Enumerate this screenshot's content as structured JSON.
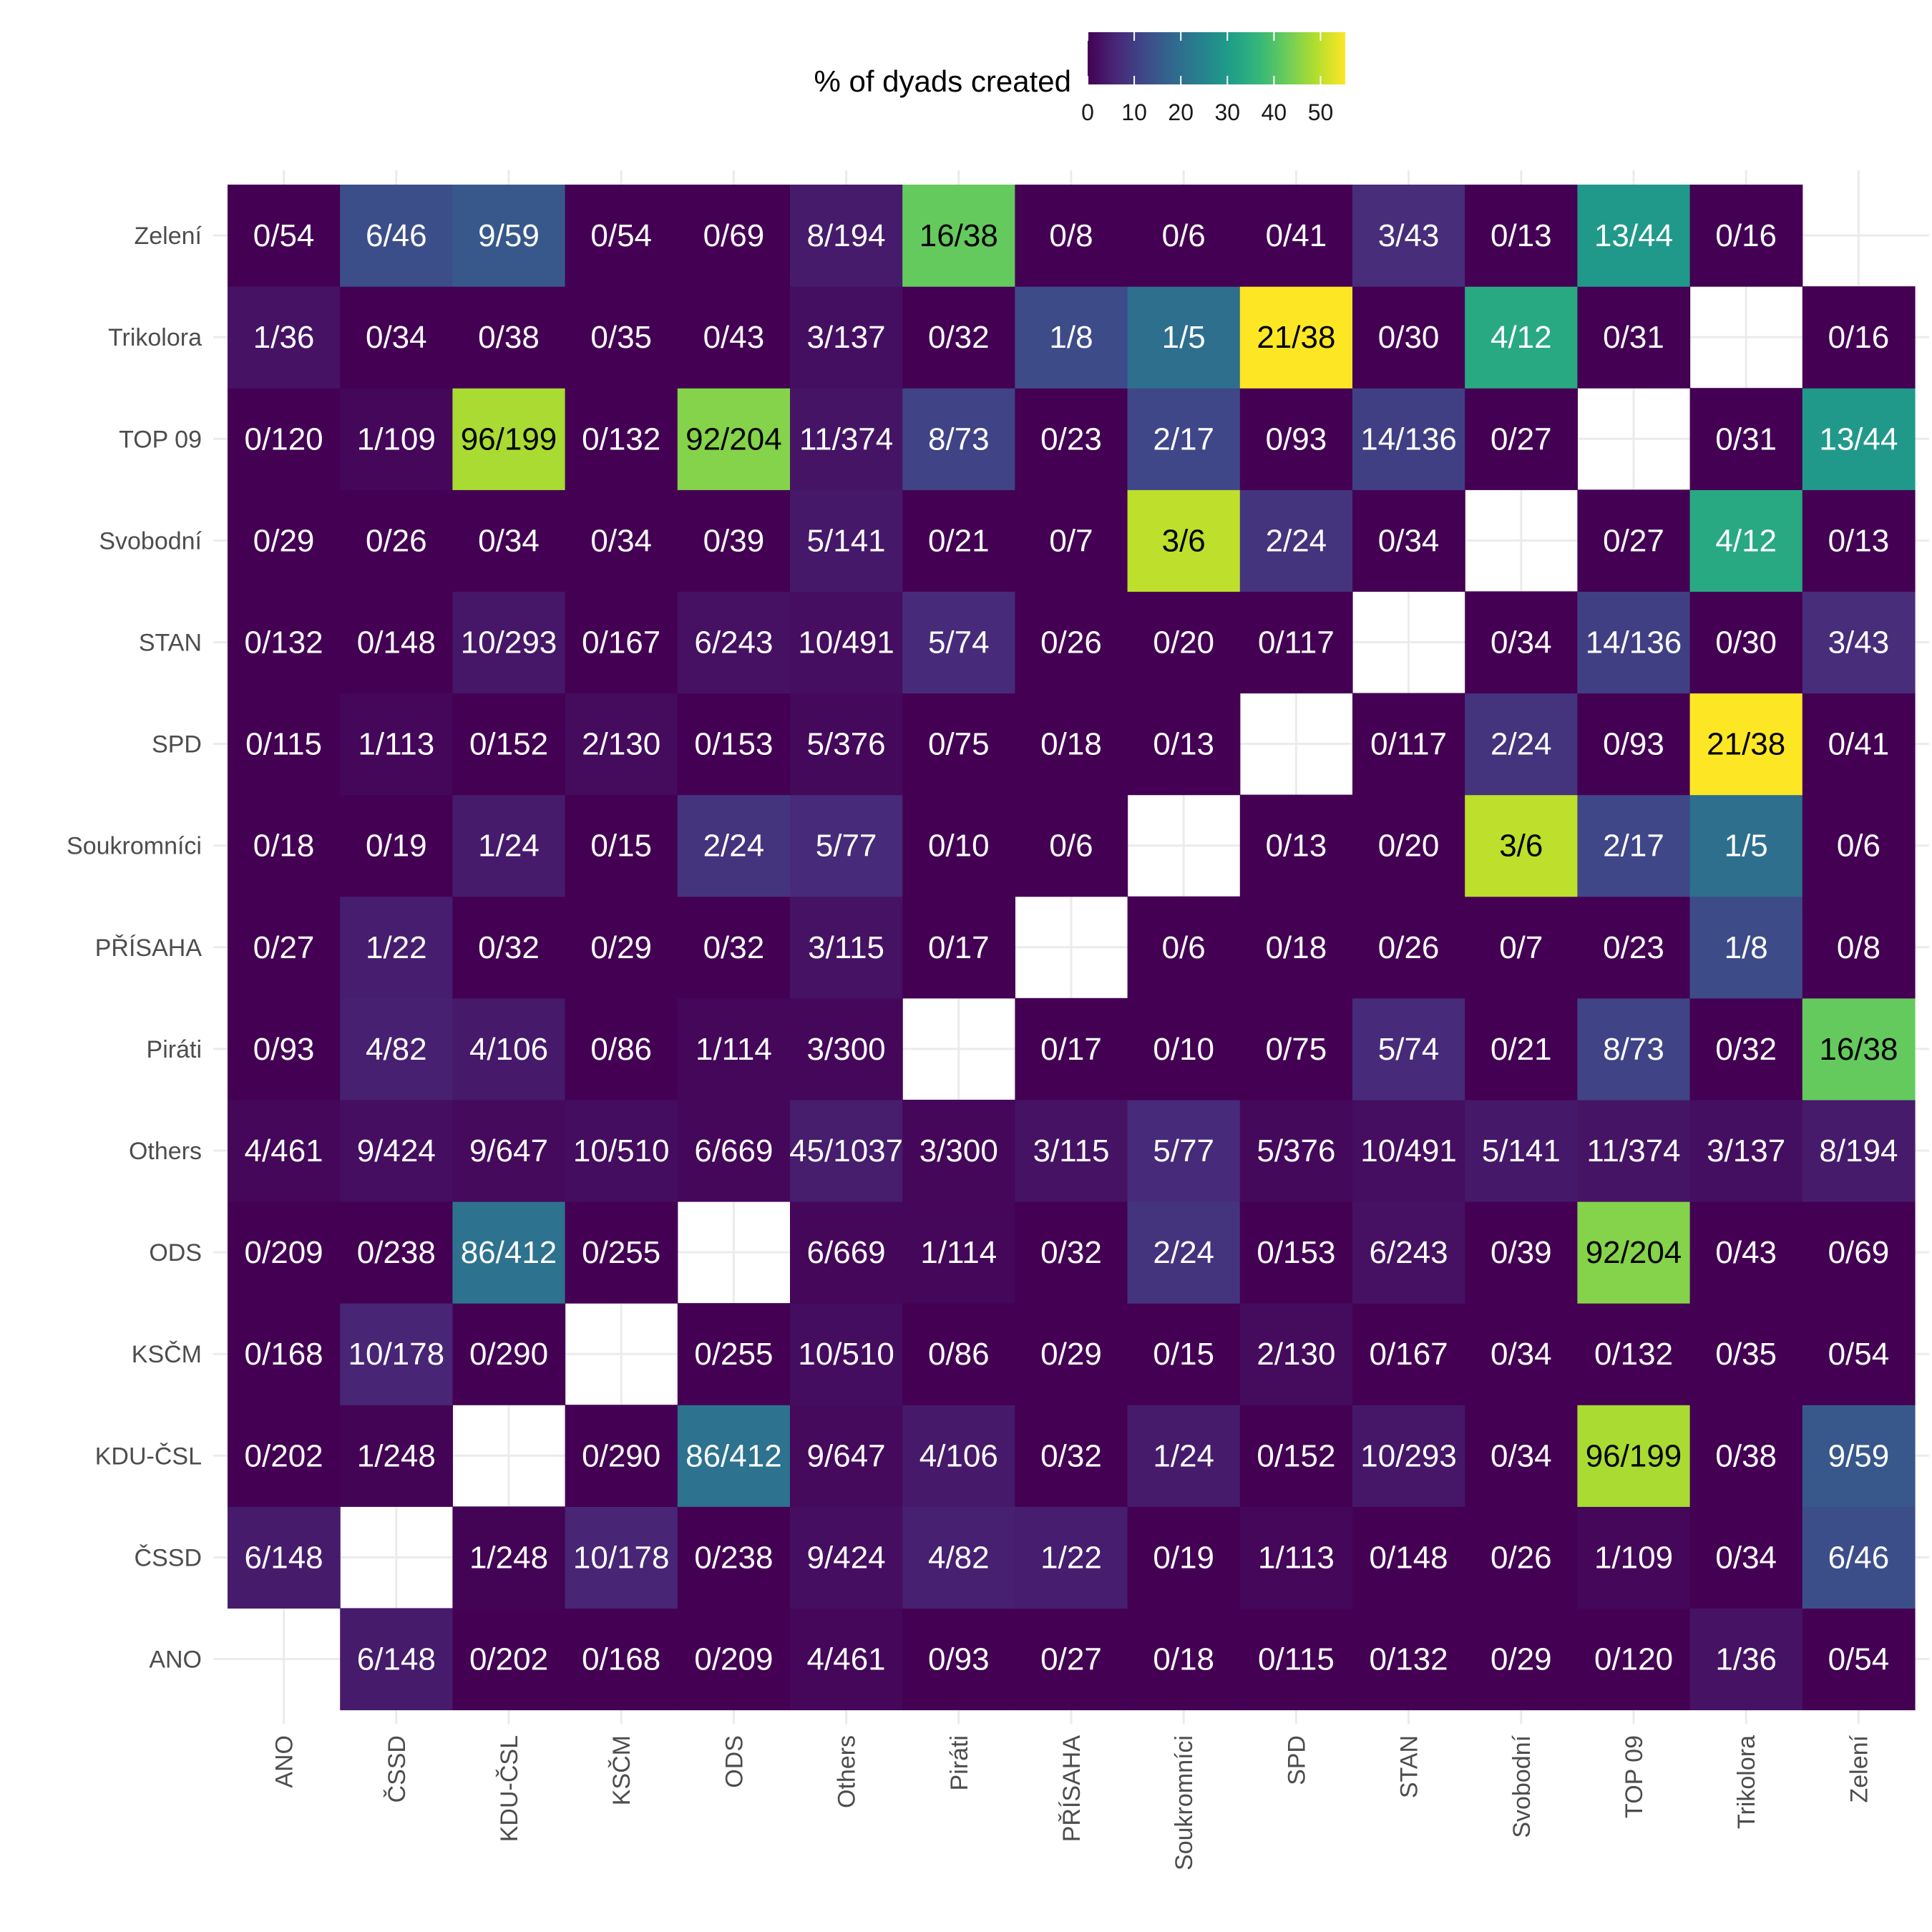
{
  "chart_data": {
    "type": "heatmap",
    "legend": {
      "title": "% of dyads created",
      "ticks": [
        0,
        10,
        20,
        30,
        40,
        50
      ],
      "range": [
        0,
        55.3
      ],
      "position": "top"
    },
    "x_categories": [
      "ANO",
      "ČSSD",
      "KDU-ČSL",
      "KSČM",
      "ODS",
      "Others",
      "Piráti",
      "PŘÍSAHA",
      "Soukromníci",
      "SPD",
      "STAN",
      "Svobodní",
      "TOP 09",
      "Trikolora",
      "Zelení"
    ],
    "y_categories": [
      "ANO",
      "ČSSD",
      "KDU-ČSL",
      "KSČM",
      "ODS",
      "Others",
      "Piráti",
      "PŘÍSAHA",
      "Soukromníci",
      "SPD",
      "STAN",
      "Svobodní",
      "TOP 09",
      "Trikolora",
      "Zelení"
    ],
    "cells": [
      [
        "",
        "6/148",
        "0/202",
        "0/168",
        "0/209",
        "4/461",
        "0/93",
        "0/27",
        "0/18",
        "0/115",
        "0/132",
        "0/29",
        "0/120",
        "1/36",
        "0/54"
      ],
      [
        "6/148",
        "",
        "1/248",
        "10/178",
        "0/238",
        "9/424",
        "4/82",
        "1/22",
        "0/19",
        "1/113",
        "0/148",
        "0/26",
        "1/109",
        "0/34",
        "6/46"
      ],
      [
        "0/202",
        "1/248",
        "",
        "0/290",
        "86/412",
        "9/647",
        "4/106",
        "0/32",
        "1/24",
        "0/152",
        "10/293",
        "0/34",
        "96/199",
        "0/38",
        "9/59"
      ],
      [
        "0/168",
        "10/178",
        "0/290",
        "",
        "0/255",
        "10/510",
        "0/86",
        "0/29",
        "0/15",
        "2/130",
        "0/167",
        "0/34",
        "0/132",
        "0/35",
        "0/54"
      ],
      [
        "0/209",
        "0/238",
        "86/412",
        "0/255",
        "",
        "6/669",
        "1/114",
        "0/32",
        "2/24",
        "0/153",
        "6/243",
        "0/39",
        "92/204",
        "0/43",
        "0/69"
      ],
      [
        "4/461",
        "9/424",
        "9/647",
        "10/510",
        "6/669",
        "45/1037",
        "3/300",
        "3/115",
        "5/77",
        "5/376",
        "10/491",
        "5/141",
        "11/374",
        "3/137",
        "8/194"
      ],
      [
        "0/93",
        "4/82",
        "4/106",
        "0/86",
        "1/114",
        "3/300",
        "",
        "0/17",
        "0/10",
        "0/75",
        "5/74",
        "0/21",
        "8/73",
        "0/32",
        "16/38"
      ],
      [
        "0/27",
        "1/22",
        "0/32",
        "0/29",
        "0/32",
        "3/115",
        "0/17",
        "",
        "0/6",
        "0/18",
        "0/26",
        "0/7",
        "0/23",
        "1/8",
        "0/8"
      ],
      [
        "0/18",
        "0/19",
        "1/24",
        "0/15",
        "2/24",
        "5/77",
        "0/10",
        "0/6",
        "",
        "0/13",
        "0/20",
        "3/6",
        "2/17",
        "1/5",
        "0/6"
      ],
      [
        "0/115",
        "1/113",
        "0/152",
        "2/130",
        "0/153",
        "5/376",
        "0/75",
        "0/18",
        "0/13",
        "",
        "0/117",
        "2/24",
        "0/93",
        "21/38",
        "0/41"
      ],
      [
        "0/132",
        "0/148",
        "10/293",
        "0/167",
        "6/243",
        "10/491",
        "5/74",
        "0/26",
        "0/20",
        "0/117",
        "",
        "0/34",
        "14/136",
        "0/30",
        "3/43"
      ],
      [
        "0/29",
        "0/26",
        "0/34",
        "0/34",
        "0/39",
        "5/141",
        "0/21",
        "0/7",
        "3/6",
        "2/24",
        "0/34",
        "",
        "0/27",
        "4/12",
        "0/13"
      ],
      [
        "0/120",
        "1/109",
        "96/199",
        "0/132",
        "92/204",
        "11/374",
        "8/73",
        "0/23",
        "2/17",
        "0/93",
        "14/136",
        "0/27",
        "",
        "0/31",
        "13/44"
      ],
      [
        "1/36",
        "0/34",
        "0/38",
        "0/35",
        "0/43",
        "3/137",
        "0/32",
        "1/8",
        "1/5",
        "21/38",
        "0/30",
        "4/12",
        "0/31",
        "",
        "0/16"
      ],
      [
        "0/54",
        "6/46",
        "9/59",
        "0/54",
        "0/69",
        "8/194",
        "16/38",
        "0/8",
        "0/6",
        "0/41",
        "3/43",
        "0/13",
        "13/44",
        "0/16",
        ""
      ]
    ],
    "colors": {
      "viridis": [
        "#440154",
        "#482878",
        "#3E4A89",
        "#31688E",
        "#26828E",
        "#1F9E89",
        "#35B779",
        "#6DCD59",
        "#B4DE2C",
        "#FDE725"
      ],
      "text_dark": "#000000",
      "text_light": "#ffffff",
      "grid": "#ebebeb"
    },
    "grid": true
  }
}
